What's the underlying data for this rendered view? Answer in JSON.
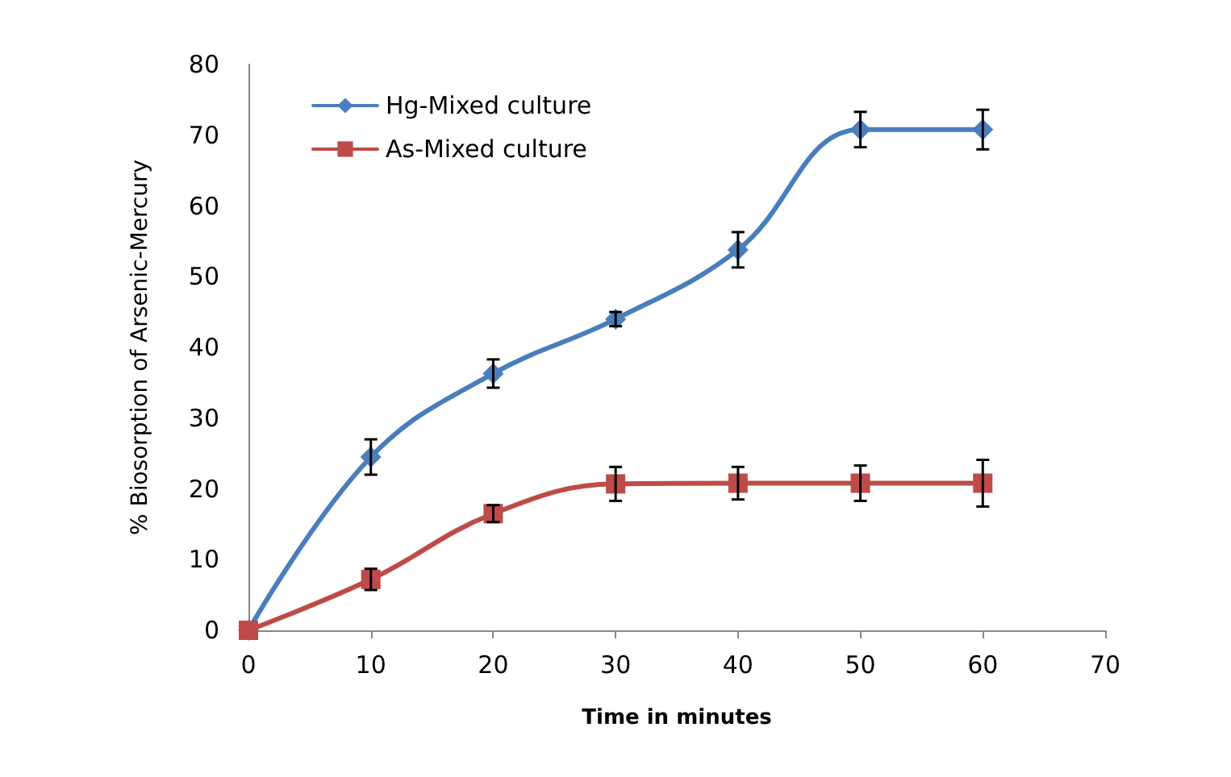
{
  "chart_data": {
    "type": "line",
    "xlabel": "Time in minutes",
    "ylabel": "% Biosorption of Arsenic-Mercury",
    "x": [
      0,
      10,
      20,
      30,
      40,
      50,
      60
    ],
    "xlim": [
      0,
      70
    ],
    "xticks": [
      0,
      10,
      20,
      30,
      40,
      50,
      60,
      70
    ],
    "ylim": [
      0,
      80
    ],
    "yticks": [
      0,
      10,
      20,
      30,
      40,
      50,
      60,
      70,
      80
    ],
    "grid": false,
    "legend": "top left",
    "series": [
      {
        "name": "Hg-Mixed culture",
        "color": "#4a7ebb",
        "marker": "diamond",
        "values": [
          0,
          24.5,
          36.3,
          44,
          53.8,
          70.8,
          70.8
        ],
        "errors": [
          null,
          2.5,
          2,
          1,
          2.5,
          2.5,
          2.8
        ]
      },
      {
        "name": "As-Mixed culture",
        "color": "#be4b48",
        "marker": "square",
        "values": [
          0,
          7.2,
          16.5,
          20.7,
          20.8,
          20.8,
          20.8
        ],
        "errors": [
          null,
          1.5,
          1.2,
          2.4,
          2.3,
          2.5,
          3.3
        ]
      }
    ]
  }
}
